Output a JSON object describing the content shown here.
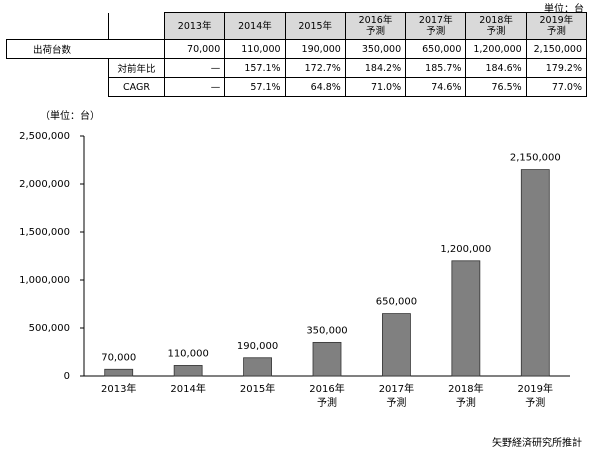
{
  "table": {
    "unit": "単位：台",
    "headers": [
      "2013年",
      "2014年",
      "2015年",
      "2016年\n予測",
      "2017年\n予測",
      "2018年\n予測",
      "2019年\n予測"
    ],
    "rows": [
      {
        "label": "出荷台数",
        "values": [
          "70,000",
          "110,000",
          "190,000",
          "350,000",
          "650,000",
          "1,200,000",
          "2,150,000"
        ]
      },
      {
        "label": "対前年比",
        "values": [
          "—",
          "157.1%",
          "172.7%",
          "184.2%",
          "185.7%",
          "184.6%",
          "179.2%"
        ]
      },
      {
        "label": "CAGR",
        "values": [
          "—",
          "57.1%",
          "64.8%",
          "71.0%",
          "74.6%",
          "76.5%",
          "77.0%"
        ]
      }
    ]
  },
  "chart_data": {
    "type": "bar",
    "unit_label": "（単位：台）",
    "categories": [
      "2013年",
      "2014年",
      "2015年",
      "2016年\n予測",
      "2017年\n予測",
      "2018年\n予測",
      "2019年\n予測"
    ],
    "values": [
      70000,
      110000,
      190000,
      350000,
      650000,
      1200000,
      2150000
    ],
    "value_labels": [
      "70,000",
      "110,000",
      "190,000",
      "350,000",
      "650,000",
      "1,200,000",
      "2,150,000"
    ],
    "color": "#808080",
    "ylim": [
      0,
      2500000
    ],
    "yticks": [
      0,
      {
        "value": 500000,
        "label": "500,000"
      },
      {
        "value": 1000000,
        "label": "1,000,000"
      },
      {
        "value": 1500000,
        "label": "1,500,000"
      },
      {
        "value": 2000000,
        "label": "2,000,000"
      },
      {
        "value": 2500000,
        "label": "2,500,000"
      }
    ],
    "grid": false
  },
  "source": "矢野経済研究所推計"
}
